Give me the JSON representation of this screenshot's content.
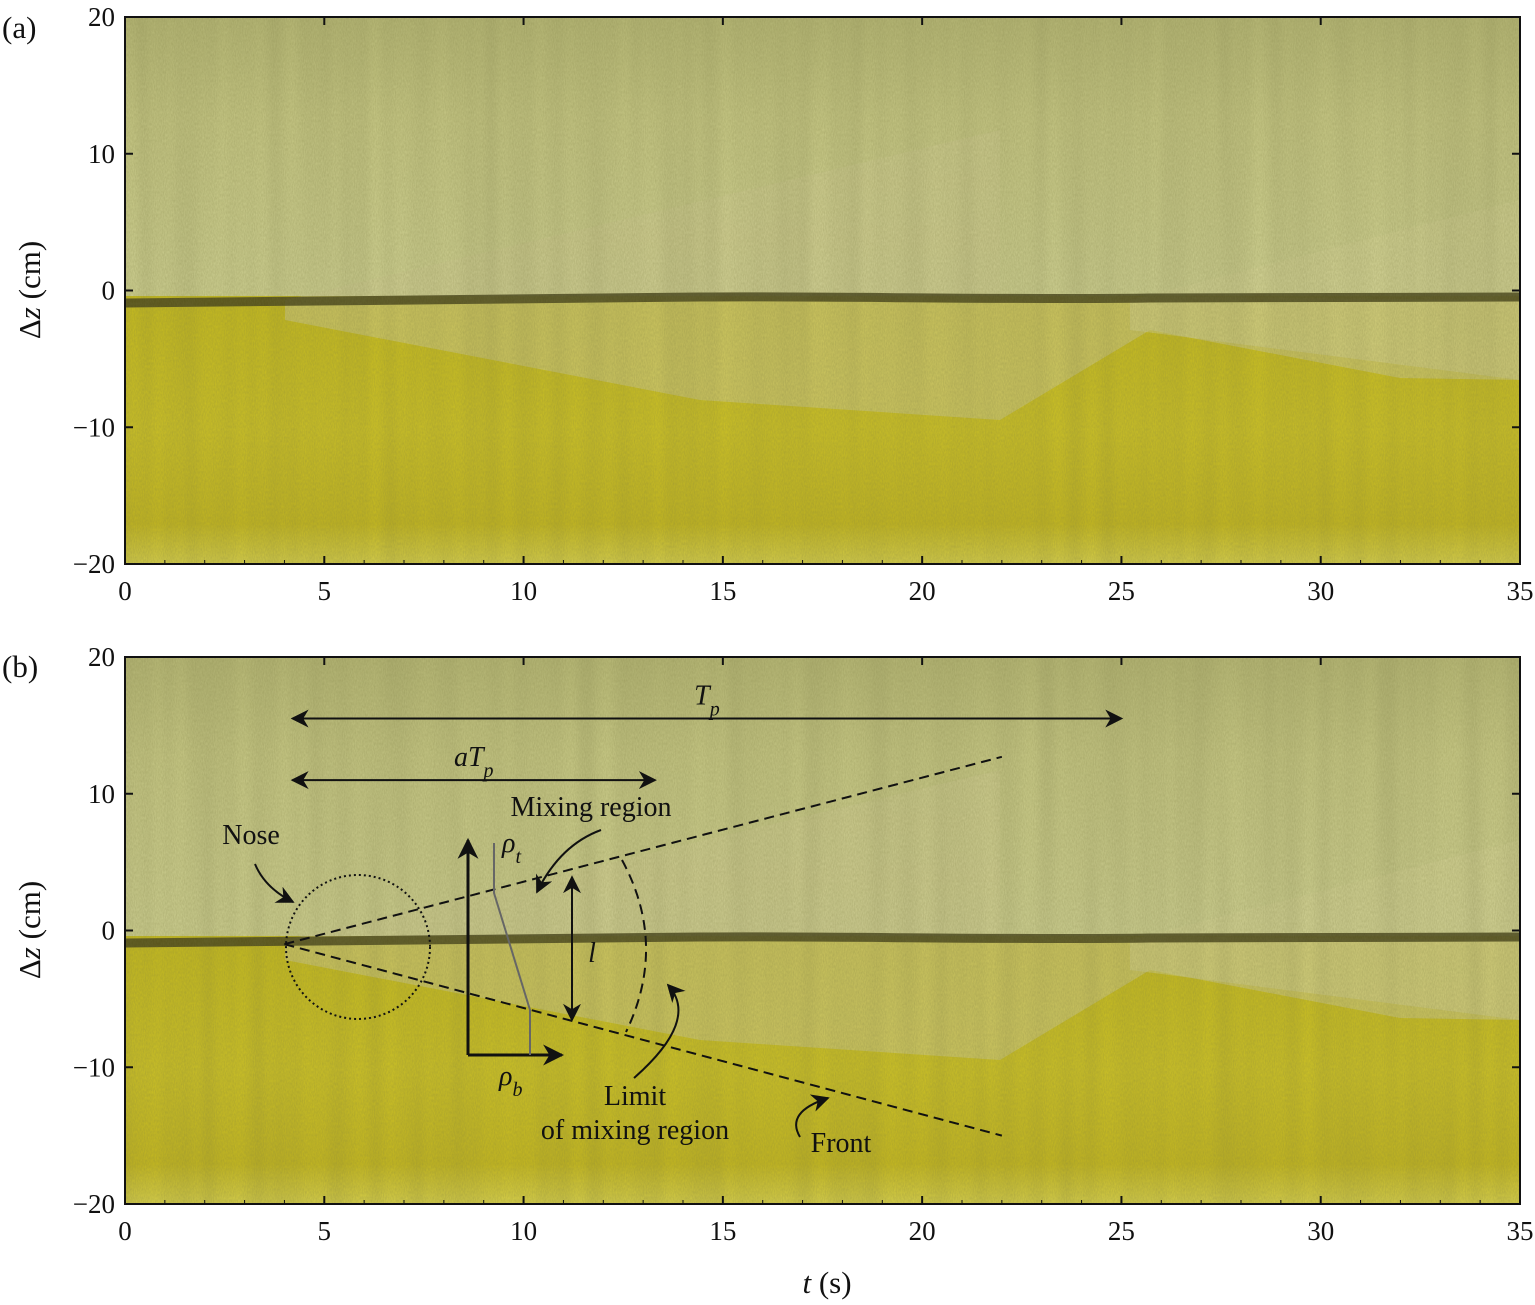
{
  "panels": [
    {
      "label": "(a)",
      "chart_data": {
        "type": "heatmap",
        "xlim": [
          0,
          35
        ],
        "ylim": [
          -20,
          20
        ],
        "xticks": [
          "0",
          "5",
          "10",
          "15",
          "20",
          "25",
          "30",
          "35"
        ],
        "yticks": [
          "20",
          "10",
          "0",
          "−10",
          "−20"
        ],
        "ylabel": "Δz (cm)",
        "colors": {
          "upper_layer": "#cdcf8a",
          "lower_layer": "#d6cb1e",
          "interface": "#4a4718"
        }
      }
    },
    {
      "label": "(b)",
      "chart_data": {
        "type": "heatmap",
        "xlim": [
          0,
          35
        ],
        "ylim": [
          -20,
          20
        ],
        "xticks": [
          "0",
          "5",
          "10",
          "15",
          "20",
          "25",
          "30",
          "35"
        ],
        "yticks": [
          "20",
          "10",
          "0",
          "−10",
          "−20"
        ],
        "ylabel": "Δz (cm)",
        "xlabel": "t (s)",
        "annotations": {
          "Tp": {
            "label": "T",
            "sub": "p",
            "t_start": 4.2,
            "t_end": 25.0,
            "z": 15.5
          },
          "aTp": {
            "label": "aT",
            "sub": "p",
            "t_start": 4.2,
            "t_end": 13.3,
            "z": 11.0
          },
          "mixing_region": "Mixing region",
          "nose": "Nose",
          "rho_t": {
            "label": "ρ",
            "sub": "t"
          },
          "rho_b": {
            "label": "ρ",
            "sub": "b"
          },
          "l": "l",
          "limit_line1": "Limit",
          "limit_line2": "of mixing region",
          "front": "Front",
          "upper_dashed": {
            "t": [
              4.0,
              22.0
            ],
            "z": [
              -1.0,
              12.7
            ]
          },
          "lower_dashed": {
            "t": [
              4.0,
              22.0
            ],
            "z": [
              -1.0,
              -15.0
            ]
          }
        }
      }
    }
  ]
}
